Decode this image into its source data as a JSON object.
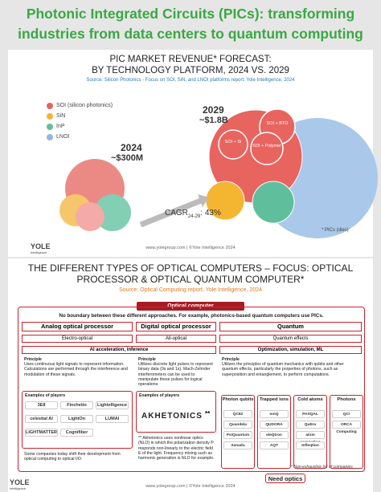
{
  "header": {
    "title": "Photonic Integrated Circuits (PICs): transforming industries from data centers to quantum computing"
  },
  "forecast": {
    "title": "PIC MARKET REVENUE* FORECAST:",
    "subtitle": "BY TECHNOLOGY PLATFORM, 2024 VS. 2029",
    "source": "Source: Silicon Photonics - Focus on SOI, SiN, and LNOI platforms report, Yole Intelligence, 2024",
    "legend": [
      "SOI (silicon photonics)",
      "SiN",
      "InP",
      "LNOI"
    ],
    "year_2024": "2024",
    "value_2024": "~$300M",
    "year_2029": "2029",
    "value_2029": "~$1.8B",
    "bubble_labels": [
      "SOI + BTO",
      "SOI + Si",
      "SOI + Polymer"
    ],
    "cagr": "CAGR",
    "cagr_period": "24-29",
    "cagr_value": ": 43%",
    "footnote": "* PICs (dies)",
    "footer": {
      "logo": "YOLE",
      "logo_sub": "Intelligence",
      "text": "www.yolegroup.com | ©Yole Intelligence 2024"
    }
  },
  "computers": {
    "title": "THE DIFFERENT TYPES OF OPTICAL COMPUTERS – FOCUS: OPTICAL PROCESSOR & OPTICAL QUANTUM COMPUTER*",
    "source": "Source: Optical Computing report, Yole Intelligence, 2024",
    "banner": "Optical computer",
    "note": "No boundary between these different approaches. For example, photonics-based quantum computers use PICs.",
    "columns": [
      {
        "title": "Analog optical processor",
        "kind": "Electro-optical",
        "principle_label": "Principle",
        "principle": "Uses continuous light signals to represent information. Calculations are performed through the interference and modulation of these signals.",
        "examples_label": "Examples of players",
        "players": [
          "3E8",
          "Finchetto",
          "Lightelligence",
          "celestial AI",
          "LightOn",
          "LUMAI",
          "LIGHTMATTER",
          "Cognifiber"
        ],
        "remark": "Some companies today shift their development from optical computing to optical I/O."
      },
      {
        "title": "Digital optical processor",
        "kind": "All-optical",
        "principle_label": "Principle",
        "principle": "Utilizes discrete light pulses to represent binary data (0s and 1s). Mach-Zehnder interferometers can be used to manipulate these pulses for logical operations.",
        "examples_label": "Examples of players",
        "players": [
          "AKHETONICS",
          "**"
        ],
        "remark": "** Akhetonics uses nonlinear optics (NLO) in which the polarization density P responds non-linearly to the electric field E of the light. Frequency mixing such as harmonic generation is NLO for example."
      },
      {
        "title": "Quantum",
        "kind": "Quantum effects",
        "principle_label": "Principle",
        "principle": "Utilizes the principles of quantum mechanics with qubits and other quantum effects, particularly the properties of photons, such as superposition and entanglement, to perform computations.",
        "groups": [
          {
            "name": "Photon qubits",
            "players": [
              "QC82",
              "Quandela",
              "PsiQuantum",
              "Xanadu"
            ]
          },
          {
            "name": "Trapped ions",
            "players": [
              "IonQ",
              "QUDORA",
              "eleQtron",
              "AQT"
            ]
          },
          {
            "name": "Cold atoms",
            "players": [
              "PASQAL",
              "QuEra",
              "atom computing",
              "Infleqtion"
            ]
          },
          {
            "name": "Photons",
            "players": [
              "QCi",
              "ORCA Computing"
            ]
          }
        ],
        "need": "Need optics"
      }
    ],
    "use_ai": "AI acceleration, inference",
    "use_quantum": "Optimization, simulation, ML",
    "footnote": "* Non-exhaustive list of companies",
    "footer": {
      "logo": "YOLE",
      "logo_sub": "Intelligence",
      "text": "www.yolegroup.com | ©Yole Intelligence 2024"
    }
  }
}
